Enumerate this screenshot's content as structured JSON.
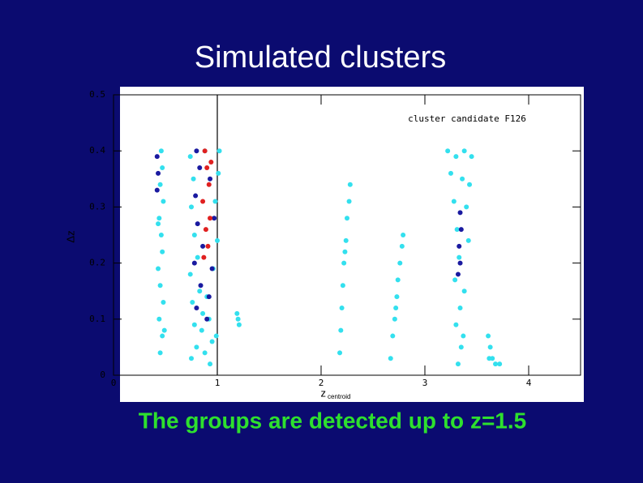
{
  "slide": {
    "title": "Simulated clusters",
    "caption": "The groups are detected up to z=1.5"
  },
  "chart_data": {
    "type": "scatter",
    "annotation": "cluster candidate F126",
    "xlabel": "z",
    "xlabel_sub": "centroid",
    "ylabel": "Δz",
    "xlim": [
      0,
      4.5
    ],
    "ylim": [
      0,
      0.5
    ],
    "xticks": [
      0,
      1,
      2,
      3,
      4
    ],
    "yticks": [
      0,
      0.1,
      0.2,
      0.3,
      0.4,
      0.5
    ],
    "vline": 1,
    "series": [
      {
        "color": "#33e0ee",
        "x": [
          0.45,
          0.47,
          0.44,
          0.48,
          0.45,
          0.43,
          0.47,
          0.46,
          0.44,
          0.48,
          0.45,
          0.47,
          0.46,
          0.49,
          0.43,
          0.75,
          0.8,
          0.88,
          0.95,
          0.78,
          0.85,
          0.92,
          0.99,
          0.76,
          0.83,
          0.9,
          0.74,
          0.81,
          0.96,
          0.78,
          1.0,
          0.75,
          0.98,
          0.77,
          1.01,
          0.74,
          0.88,
          1.02,
          0.93,
          0.86,
          1.2,
          1.21,
          1.19,
          2.18,
          2.19,
          2.2,
          2.21,
          2.22,
          2.24,
          2.25,
          2.27,
          2.28,
          2.23,
          2.67,
          2.69,
          2.71,
          2.73,
          2.74,
          2.76,
          2.78,
          2.79,
          2.72,
          3.22,
          3.3,
          3.38,
          3.45,
          3.25,
          3.36,
          3.43,
          3.28,
          3.4,
          3.31,
          3.42,
          3.33,
          3.29,
          3.38,
          3.34,
          3.3,
          3.37,
          3.35,
          3.32,
          3.61,
          3.63,
          3.65,
          3.68,
          3.72,
          3.62
        ],
        "values": [
          0.04,
          0.07,
          0.1,
          0.13,
          0.16,
          0.19,
          0.22,
          0.25,
          0.28,
          0.31,
          0.34,
          0.37,
          0.4,
          0.08,
          0.27,
          0.03,
          0.05,
          0.04,
          0.06,
          0.09,
          0.08,
          0.1,
          0.07,
          0.13,
          0.15,
          0.14,
          0.18,
          0.21,
          0.19,
          0.25,
          0.24,
          0.3,
          0.31,
          0.35,
          0.36,
          0.39,
          0.4,
          0.4,
          0.02,
          0.11,
          0.1,
          0.09,
          0.11,
          0.04,
          0.08,
          0.12,
          0.16,
          0.2,
          0.24,
          0.28,
          0.31,
          0.34,
          0.22,
          0.03,
          0.07,
          0.1,
          0.14,
          0.17,
          0.2,
          0.23,
          0.25,
          0.12,
          0.4,
          0.39,
          0.4,
          0.39,
          0.36,
          0.35,
          0.34,
          0.31,
          0.3,
          0.26,
          0.24,
          0.21,
          0.17,
          0.15,
          0.12,
          0.09,
          0.07,
          0.05,
          0.02,
          0.07,
          0.05,
          0.03,
          0.02,
          0.02,
          0.03
        ]
      },
      {
        "color": "#1a1aa0",
        "x": [
          0.42,
          0.43,
          0.42,
          0.8,
          0.84,
          0.78,
          0.86,
          0.81,
          0.79,
          0.83,
          0.8,
          0.95,
          0.92,
          0.9,
          0.97,
          0.93,
          3.34,
          3.35,
          3.33,
          3.34,
          3.32
        ],
        "values": [
          0.33,
          0.36,
          0.39,
          0.12,
          0.16,
          0.2,
          0.23,
          0.27,
          0.32,
          0.37,
          0.4,
          0.19,
          0.14,
          0.1,
          0.28,
          0.35,
          0.29,
          0.26,
          0.23,
          0.2,
          0.18
        ]
      },
      {
        "color": "#e02020",
        "x": [
          0.88,
          0.9,
          0.92,
          0.86,
          0.93,
          0.89,
          0.91,
          0.87,
          0.94
        ],
        "values": [
          0.4,
          0.37,
          0.34,
          0.31,
          0.28,
          0.26,
          0.23,
          0.21,
          0.38
        ]
      }
    ]
  }
}
